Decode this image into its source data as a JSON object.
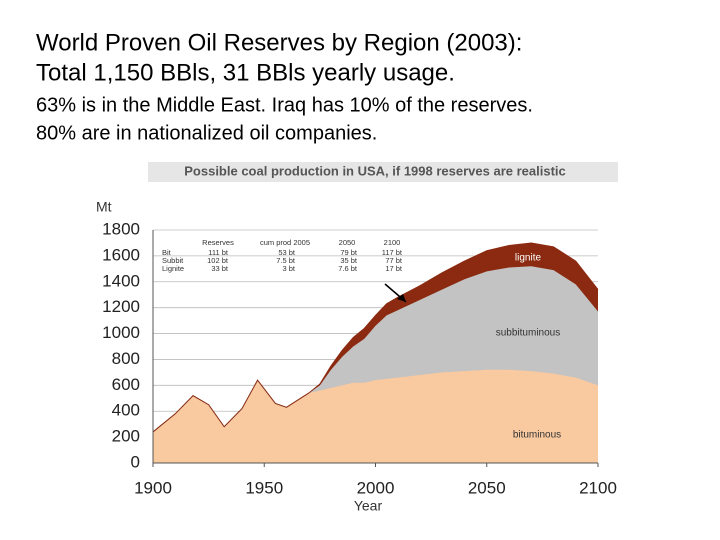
{
  "slide": {
    "title": [
      "World Proven Oil Reserves by Region (2003):",
      "Total 1,150 BBls, 31 BBls yearly usage."
    ],
    "subtitle": [
      "63% is in the Middle East.  Iraq has 10% of the reserves.",
      "80% are in nationalized oil companies."
    ]
  },
  "chart_data": {
    "type": "stacked-area",
    "title": "Possible coal production in USA, if 1998 reserves are realistic",
    "y_label": "Mt",
    "x_label": "Year",
    "x": [
      1900,
      1910,
      1918,
      1925,
      1932,
      1940,
      1947,
      1955,
      1960,
      1970,
      1975,
      1980,
      1985,
      1990,
      1995,
      2000,
      2005,
      2010,
      2020,
      2030,
      2040,
      2050,
      2060,
      2070,
      2080,
      2090,
      2100
    ],
    "series": [
      {
        "name": "bituminous",
        "color": "#f9c9a0",
        "values": [
          240,
          380,
          520,
          450,
          280,
          420,
          640,
          460,
          430,
          540,
          560,
          580,
          600,
          620,
          620,
          640,
          650,
          660,
          680,
          700,
          710,
          720,
          720,
          710,
          690,
          660,
          600
        ]
      },
      {
        "name": "subbituminous",
        "color": "#c3c3c3",
        "values": [
          0,
          0,
          0,
          0,
          0,
          0,
          0,
          0,
          0,
          0,
          40,
          140,
          220,
          280,
          340,
          420,
          490,
          520,
          580,
          640,
          710,
          760,
          790,
          810,
          800,
          720,
          570
        ]
      },
      {
        "name": "lignite",
        "color": "#8b2a10",
        "values": [
          0,
          0,
          0,
          0,
          0,
          0,
          0,
          0,
          0,
          0,
          10,
          30,
          50,
          70,
          80,
          80,
          90,
          100,
          110,
          130,
          140,
          160,
          170,
          180,
          180,
          180,
          170
        ]
      }
    ],
    "xlim": [
      1900,
      2100
    ],
    "xticks": [
      1900,
      1950,
      2000,
      2050,
      2100
    ],
    "ylim": [
      0,
      1800
    ],
    "yticks": [
      0,
      200,
      400,
      600,
      800,
      1000,
      1200,
      1400,
      1600,
      1800
    ],
    "grid": true,
    "table": {
      "columns": [
        "Reserves",
        "cum prod 2005",
        "2050",
        "2100"
      ],
      "rows": [
        {
          "label": "Bit",
          "cells": [
            "111 bt",
            "53 bt",
            "79 bt",
            "117 bt"
          ]
        },
        {
          "label": "Subbit",
          "cells": [
            "102 bt",
            "7.5 bt",
            "35 bt",
            "77 bt"
          ]
        },
        {
          "label": "Lignite",
          "cells": [
            "33 bt",
            "3 bt",
            "7.6 bt",
            "17 bt"
          ]
        }
      ]
    }
  }
}
